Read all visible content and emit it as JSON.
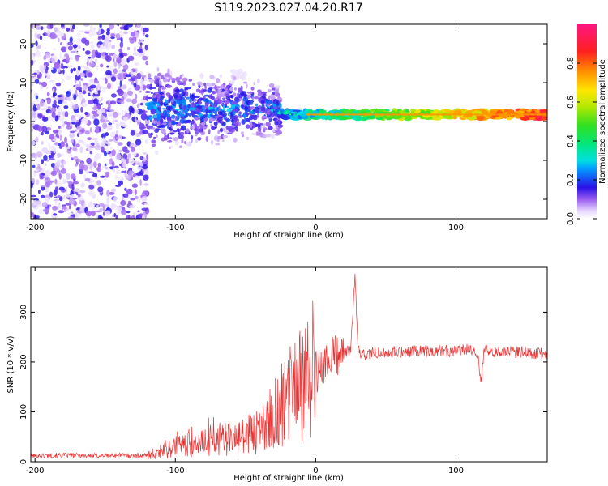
{
  "title": "S119.2023.027.04.20.R17",
  "chart_data": [
    {
      "type": "heatmap",
      "xlabel": "Height of straight line (km)",
      "ylabel": "Frequency (Hz)",
      "xlim": [
        -203,
        165
      ],
      "ylim": [
        -25,
        25
      ],
      "xticks": [
        -200,
        -100,
        0,
        100
      ],
      "yticks": [
        -20,
        -10,
        0,
        10,
        20
      ],
      "colorbar": {
        "label": "Normalized spectral amplitude",
        "range": [
          0,
          1
        ],
        "ticks": [
          "0.0",
          "0.2",
          "0.4",
          "0.6",
          "0.8"
        ],
        "tick_values": [
          0,
          0.2,
          0.4,
          0.6,
          0.8
        ]
      },
      "features": [
        {
          "region": "noise",
          "x_range": [
            -203,
            -120
          ],
          "freq_range": [
            -25,
            25
          ],
          "amplitude": 0.12
        },
        {
          "region": "transition",
          "x_range": [
            -120,
            -25
          ],
          "freq_range": [
            -15,
            12
          ],
          "amplitude": 0.2
        },
        {
          "region": "line",
          "x_range": [
            -25,
            165
          ],
          "center_freq": 1.8,
          "amplitude": 0.75
        }
      ]
    },
    {
      "type": "line",
      "xlabel": "Height of straight line (km)",
      "ylabel": "SNR (10 * v/v)",
      "xlim": [
        -203,
        165
      ],
      "ylim": [
        0,
        390
      ],
      "xticks": [
        -200,
        -100,
        0,
        100
      ],
      "yticks": [
        0,
        100,
        200,
        300
      ],
      "series": [
        {
          "color": "#ee3030",
          "x": [
            -203,
            -180,
            -160,
            -140,
            -120,
            -110,
            -100,
            -90,
            -80,
            -70,
            -60,
            -50,
            -40,
            -35,
            -30,
            -25,
            -20,
            -15,
            -10,
            -5,
            0,
            5,
            10,
            15,
            20,
            25,
            28,
            30,
            32,
            35,
            40,
            50,
            60,
            70,
            80,
            90,
            100,
            110,
            115,
            118,
            120,
            125,
            130,
            140,
            150,
            165
          ],
          "values": [
            12,
            13,
            12,
            13,
            12,
            20,
            30,
            35,
            40,
            45,
            45,
            50,
            65,
            75,
            95,
            110,
            130,
            145,
            150,
            165,
            180,
            195,
            205,
            215,
            220,
            225,
            380,
            225,
            215,
            215,
            218,
            220,
            220,
            222,
            222,
            222,
            222,
            225,
            220,
            160,
            230,
            222,
            222,
            220,
            220,
            215
          ]
        }
      ]
    }
  ]
}
